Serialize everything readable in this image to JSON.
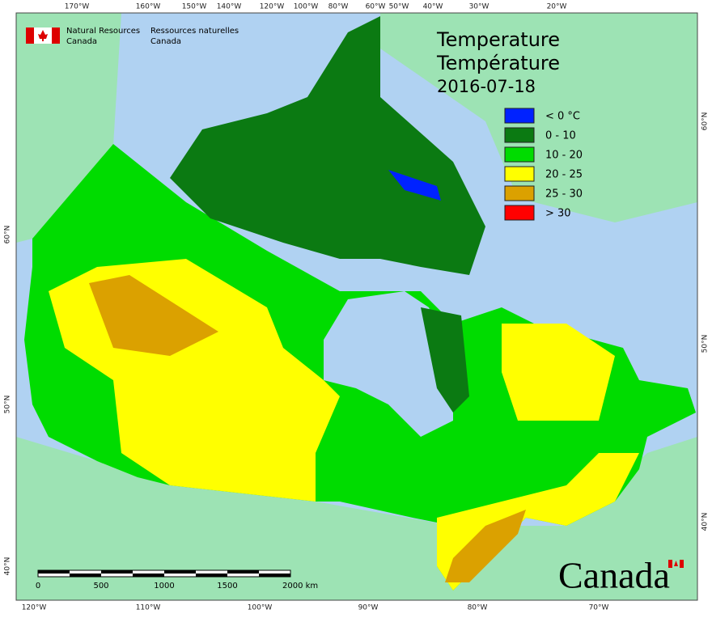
{
  "header": {
    "org_en": [
      "Natural Resources",
      "Canada"
    ],
    "org_fr": [
      "Ressources naturelles",
      "Canada"
    ]
  },
  "title": {
    "lines": [
      "Temperature",
      "Température",
      "2016-07-18"
    ]
  },
  "legend": [
    {
      "label": "< 0 °C",
      "color": "#0022ff"
    },
    {
      "label": "0 - 10",
      "color": "#0b7a12"
    },
    {
      "label": "10 - 20",
      "color": "#00dc00"
    },
    {
      "label": "20 - 25",
      "color": "#ffff00"
    },
    {
      "label": "25 - 30",
      "color": "#dba100"
    },
    {
      "label": "> 30",
      "color": "#ff0000"
    }
  ],
  "graticule": {
    "top": [
      "170°W",
      "160°W",
      "150°W",
      "140°W",
      "120°W",
      "100°W",
      "80°W",
      "60°W",
      "50°W",
      "40°W",
      "30°W",
      "20°W"
    ],
    "bottom": [
      "120°W",
      "110°W",
      "100°W",
      "90°W",
      "80°W",
      "70°W"
    ],
    "left": [
      "60°N",
      "50°N",
      "40°N"
    ],
    "right": [
      "60°N",
      "50°N",
      "40°N"
    ]
  },
  "scale_bar": {
    "labels": [
      "0",
      "500",
      "1000",
      "1500",
      "2000 km"
    ]
  },
  "wordmark": "Canada"
}
